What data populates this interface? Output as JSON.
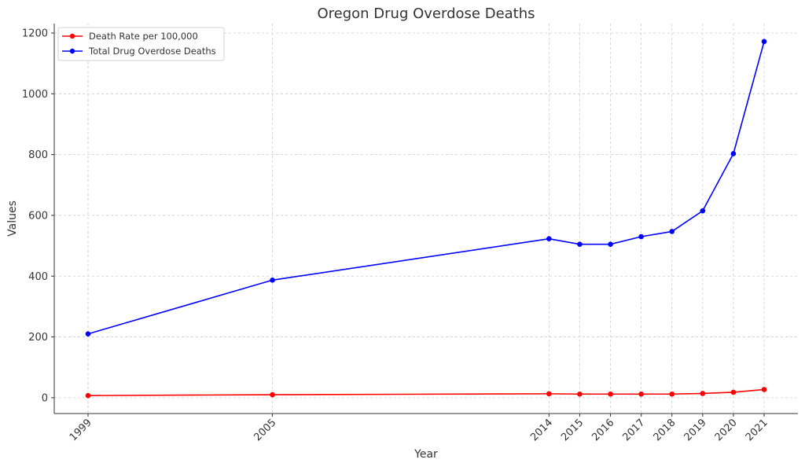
{
  "chart_data": {
    "type": "line",
    "title": "Oregon Drug Overdose Deaths",
    "xlabel": "Year",
    "ylabel": "Values",
    "x": [
      1999,
      2005,
      2014,
      2015,
      2016,
      2017,
      2018,
      2019,
      2020,
      2021
    ],
    "xtick_labels": [
      "1999",
      "2005",
      "2014",
      "2015",
      "2016",
      "2017",
      "2018",
      "2019",
      "2020",
      "2021"
    ],
    "yticks": [
      0,
      200,
      400,
      600,
      800,
      1000,
      1200
    ],
    "xlim": [
      1997.9,
      2022.1
    ],
    "ylim": [
      -52,
      1231
    ],
    "grid": true,
    "legend_position": "top-left",
    "series": [
      {
        "name": "Death Rate per 100,000",
        "color": "#ff0000",
        "values": [
          7,
          10,
          13,
          12,
          12,
          12,
          12,
          14,
          18,
          27
        ]
      },
      {
        "name": "Total Drug Overdose Deaths",
        "color": "#0000ff",
        "values": [
          210,
          387,
          523,
          505,
          505,
          530,
          547,
          615,
          803,
          1172
        ]
      }
    ]
  }
}
